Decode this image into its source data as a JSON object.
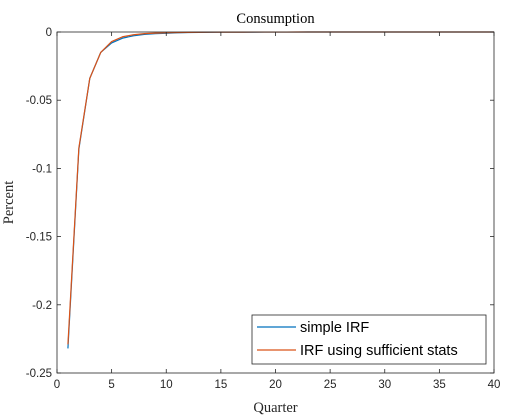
{
  "chart_data": {
    "type": "line",
    "title": "Consumption",
    "xlabel": "Quarter",
    "ylabel": "Percent",
    "xlim": [
      0,
      40
    ],
    "ylim": [
      -0.25,
      0
    ],
    "xticks": [
      0,
      5,
      10,
      15,
      20,
      25,
      30,
      35,
      40
    ],
    "xtick_labels": [
      "0",
      "5",
      "10",
      "15",
      "20",
      "25",
      "30",
      "35",
      "40"
    ],
    "yticks": [
      0,
      -0.05,
      -0.1,
      -0.15,
      -0.2,
      -0.25
    ],
    "ytick_labels": [
      "0",
      "-0.05",
      "-0.1",
      "-0.15",
      "-0.2",
      "-0.25"
    ],
    "grid": false,
    "legend_position": "bottom-right",
    "series": [
      {
        "name": "simple IRF",
        "color": "#0072bd",
        "x": [
          1,
          2,
          3,
          4,
          5,
          6,
          7,
          8,
          9,
          10,
          11,
          12,
          13,
          14,
          15,
          16,
          17,
          18,
          19,
          20,
          21,
          22,
          23,
          24,
          25,
          26,
          27,
          28,
          29,
          30,
          31,
          32,
          33,
          34,
          35,
          36,
          37,
          38,
          39,
          40
        ],
        "y": [
          -0.232,
          -0.086,
          -0.034,
          -0.015,
          -0.008,
          -0.0045,
          -0.0028,
          -0.0018,
          -0.0012,
          -0.0009,
          -0.0006,
          -0.0004,
          -0.0003,
          -0.0002,
          -0.00015,
          -0.0001,
          -0.0001,
          -8e-05,
          -6e-05,
          -5e-05,
          -4e-05,
          -3e-05,
          -2e-05,
          -2e-05,
          -1e-05,
          -1e-05,
          -1e-05,
          -1e-05,
          0,
          0,
          0,
          0,
          0,
          0,
          0,
          0,
          0,
          0,
          0,
          0
        ]
      },
      {
        "name": "IRF using sufficient stats",
        "color": "#d95319",
        "x": [
          1,
          2,
          3,
          4,
          5,
          6,
          7,
          8,
          9,
          10,
          11,
          12,
          13,
          14,
          15,
          16,
          17,
          18,
          19,
          20,
          21,
          22,
          23,
          24,
          25,
          26,
          27,
          28,
          29,
          30,
          31,
          32,
          33,
          34,
          35,
          36,
          37,
          38,
          39,
          40
        ],
        "y": [
          -0.229,
          -0.085,
          -0.034,
          -0.015,
          -0.007,
          -0.0035,
          -0.002,
          -0.0012,
          -0.0008,
          -0.0006,
          -0.0004,
          -0.0003,
          -0.0002,
          -0.00015,
          -0.0001,
          -0.0001,
          -8e-05,
          -6e-05,
          -5e-05,
          -4e-05,
          -3e-05,
          -2e-05,
          -2e-05,
          -1e-05,
          -1e-05,
          -1e-05,
          0,
          0,
          0,
          0,
          0,
          0,
          0,
          0,
          0,
          0,
          0,
          0,
          0,
          0
        ]
      }
    ]
  }
}
